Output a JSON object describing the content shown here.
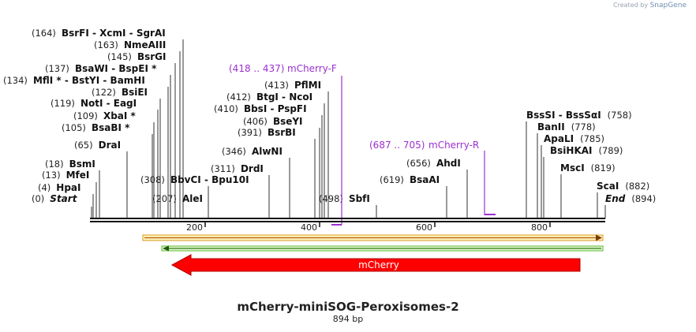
{
  "credit": {
    "prefix": "Created by",
    "brand": "SnapGene"
  },
  "title": "mCherry-miniSOG-Peroxisomes-2",
  "length_label": "894 bp",
  "ruler": {
    "ticks": [
      "200",
      "400",
      "600",
      "800"
    ]
  },
  "sites": [
    {
      "pos": "(0)",
      "name": "Start",
      "kind": "endpoint"
    },
    {
      "pos": "(4)",
      "name": "HpaI"
    },
    {
      "pos": "(13)",
      "name": "MfeI"
    },
    {
      "pos": "(18)",
      "name": "BsmI"
    },
    {
      "pos": "(65)",
      "name": "DraI"
    },
    {
      "pos": "(105)",
      "name": "BsaBI *"
    },
    {
      "pos": "(109)",
      "name": "XbaI *"
    },
    {
      "pos": "(119)",
      "name": "NotI  -  EagI"
    },
    {
      "pos": "(122)",
      "name": "BsiEI"
    },
    {
      "pos": "(134)",
      "name": "MflI *  - BstYI  - BamHI"
    },
    {
      "pos": "(137)",
      "name": "BsaWI  - BspEI *"
    },
    {
      "pos": "(145)",
      "name": "BsrGI"
    },
    {
      "pos": "(163)",
      "name": "NmeAIII"
    },
    {
      "pos": "(164)",
      "name": "BsrFI  - XcmI  - SgrAI"
    },
    {
      "pos": "(207)",
      "name": "AleI"
    },
    {
      "pos": "(308)",
      "name": "BbvCI  - Bpu10I"
    },
    {
      "pos": "(311)",
      "name": "DrdI"
    },
    {
      "pos": "(346)",
      "name": "AlwNI"
    },
    {
      "pos": "(391)",
      "name": "BsrBI"
    },
    {
      "pos": "(406)",
      "name": "BseYI"
    },
    {
      "pos": "(410)",
      "name": "BbsI  - PspFI"
    },
    {
      "pos": "(412)",
      "name": "BtgI  - NcoI"
    },
    {
      "pos": "(413)",
      "name": "PflMI"
    },
    {
      "pos": "(498)",
      "name": "SbfI"
    },
    {
      "pos": "(619)",
      "name": "BsaAI"
    },
    {
      "pos": "(656)",
      "name": "AhdI"
    },
    {
      "pos": "(758)",
      "name": "BssSI  - BssSαI"
    },
    {
      "pos": "(778)",
      "name": "BanII"
    },
    {
      "pos": "(785)",
      "name": "ApaLI"
    },
    {
      "pos": "(789)",
      "name": "BsiHKAI"
    },
    {
      "pos": "(819)",
      "name": "MscI"
    },
    {
      "pos": "(882)",
      "name": "ScaI"
    },
    {
      "pos": "(894)",
      "name": "End",
      "kind": "endpoint"
    }
  ],
  "primers": [
    {
      "range": "(418 .. 437)",
      "name": "mCherry-F"
    },
    {
      "range": "(687 .. 705)",
      "name": "mCherry-R"
    }
  ],
  "features": [
    {
      "name": "mCherry",
      "color": "#ff0000"
    }
  ],
  "colors": {
    "primer": "#9b30d0",
    "orange_bar": "#f5a623",
    "green_bar": "#5cb82e",
    "feature": "#ff0000"
  }
}
